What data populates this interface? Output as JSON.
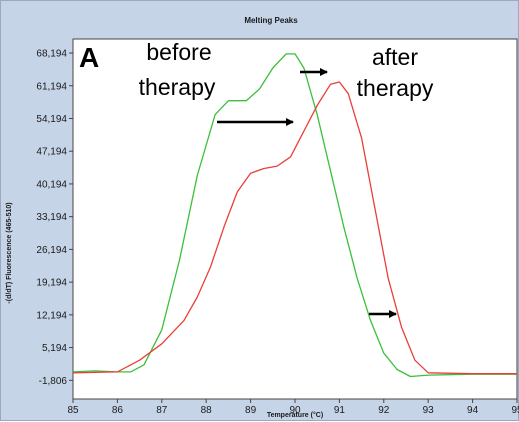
{
  "chart_data": {
    "type": "line",
    "title": "Melting Peaks",
    "xlabel": "Temperature (°C)",
    "ylabel": "-(d/dT) Fluorescence (465-510)",
    "xlim": [
      85,
      95
    ],
    "ylim": [
      -5806,
      71194
    ],
    "x_ticks": [
      85,
      86,
      87,
      88,
      89,
      90,
      91,
      92,
      93,
      94,
      95
    ],
    "y_ticks": [
      -1806,
      5194,
      12194,
      19194,
      26194,
      33194,
      40194,
      47194,
      54194,
      61194,
      68194
    ],
    "y_tick_labels": [
      "-1,806",
      "5,194",
      "12,194",
      "19,194",
      "26,194",
      "33,194",
      "40,194",
      "47,194",
      "54,194",
      "61,194",
      "68,194"
    ],
    "series": [
      {
        "color": "#3cbf3c",
        "points": [
          [
            85,
            0
          ],
          [
            85.5,
            200
          ],
          [
            86,
            0
          ],
          [
            86.3,
            0
          ],
          [
            86.6,
            1500
          ],
          [
            87,
            9000
          ],
          [
            87.4,
            24000
          ],
          [
            87.8,
            42000
          ],
          [
            88.2,
            55000
          ],
          [
            88.5,
            58000
          ],
          [
            88.9,
            58000
          ],
          [
            89.2,
            60500
          ],
          [
            89.5,
            65000
          ],
          [
            89.8,
            68000
          ],
          [
            90.0,
            68000
          ],
          [
            90.2,
            65000
          ],
          [
            90.5,
            55000
          ],
          [
            90.8,
            43000
          ],
          [
            91.1,
            31000
          ],
          [
            91.4,
            20000
          ],
          [
            91.7,
            11000
          ],
          [
            92.0,
            4000
          ],
          [
            92.3,
            500
          ],
          [
            92.6,
            -1000
          ],
          [
            93,
            -700
          ],
          [
            94,
            -500
          ],
          [
            95,
            -500
          ]
        ]
      },
      {
        "color": "#e8403a",
        "points": [
          [
            85,
            -200
          ],
          [
            86,
            0
          ],
          [
            86.5,
            2500
          ],
          [
            87,
            6000
          ],
          [
            87.5,
            11000
          ],
          [
            87.8,
            16000
          ],
          [
            88.1,
            22500
          ],
          [
            88.4,
            31000
          ],
          [
            88.7,
            38500
          ],
          [
            89.0,
            42500
          ],
          [
            89.3,
            43500
          ],
          [
            89.6,
            44000
          ],
          [
            89.9,
            46000
          ],
          [
            90.2,
            51500
          ],
          [
            90.5,
            57000
          ],
          [
            90.8,
            61500
          ],
          [
            91.0,
            62000
          ],
          [
            91.2,
            59500
          ],
          [
            91.5,
            50000
          ],
          [
            91.8,
            35000
          ],
          [
            92.1,
            20000
          ],
          [
            92.4,
            9500
          ],
          [
            92.7,
            2500
          ],
          [
            93.0,
            -200
          ],
          [
            94,
            -400
          ],
          [
            95,
            -400
          ]
        ]
      }
    ],
    "annotations": [
      {
        "text": "A"
      },
      {
        "text": "before"
      },
      {
        "text": "therapy"
      },
      {
        "text": "after"
      },
      {
        "text": "therapy"
      }
    ]
  }
}
